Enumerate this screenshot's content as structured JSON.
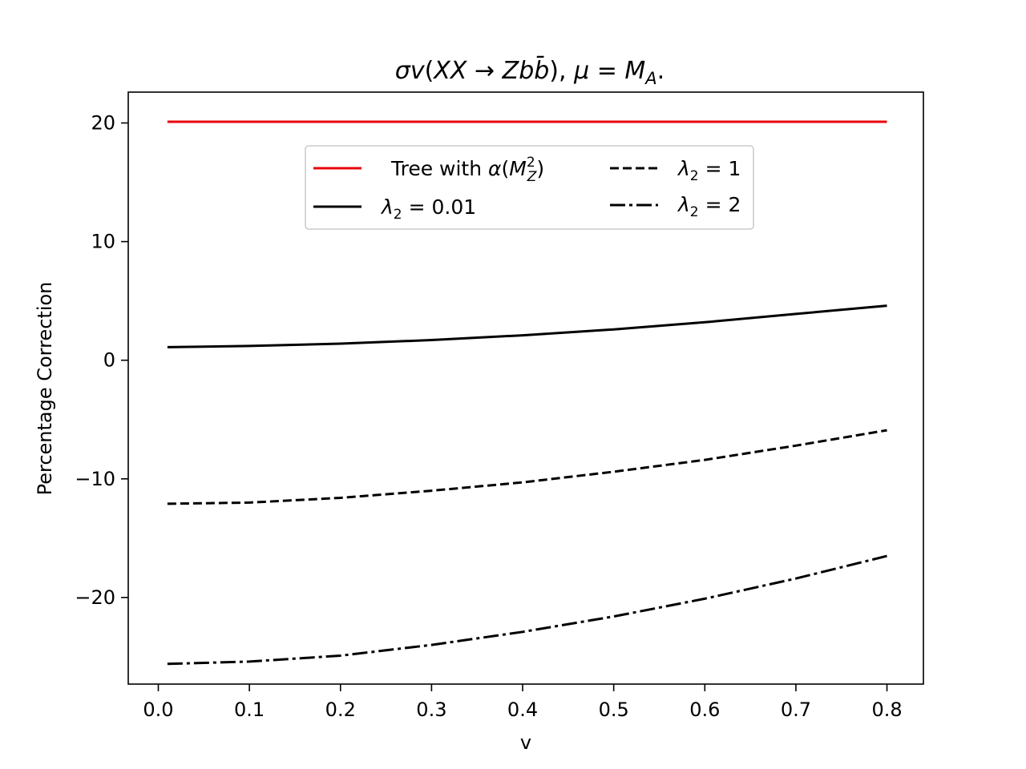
{
  "chart_data": {
    "type": "line",
    "title": {
      "sigma": "σ",
      "v": "v",
      "open": "(",
      "X1": "X",
      "X2": "X",
      "arrow": " → ",
      "Z": "Z",
      "b": "b",
      "bbar": "b̄",
      "close": "),",
      "mu": " μ",
      "eq": " = ",
      "M": "M",
      "A": "A",
      "end": "."
    },
    "xlabel": "v",
    "ylabel": "Percentage Correction",
    "xlim": [
      -0.033,
      0.84
    ],
    "ylim": [
      -27.3,
      22.6
    ],
    "xticks": [
      0.0,
      0.1,
      0.2,
      0.3,
      0.4,
      0.5,
      0.6,
      0.7,
      0.8
    ],
    "xtick_labels": [
      "0.0",
      "0.1",
      "0.2",
      "0.3",
      "0.4",
      "0.5",
      "0.6",
      "0.7",
      "0.8"
    ],
    "yticks": [
      -20,
      -10,
      0,
      10,
      20
    ],
    "ytick_labels": [
      "−20",
      "−10",
      "0",
      "10",
      "20"
    ],
    "x": [
      0.01,
      0.1,
      0.2,
      0.3,
      0.4,
      0.5,
      0.6,
      0.7,
      0.8
    ],
    "series": [
      {
        "key": "tree",
        "color": "#e8000b",
        "dash": "solid",
        "values": [
          20.1,
          20.1,
          20.1,
          20.1,
          20.1,
          20.1,
          20.1,
          20.1,
          20.1
        ]
      },
      {
        "key": "l001",
        "color": "#000000",
        "dash": "solid",
        "values": [
          1.1,
          1.2,
          1.4,
          1.7,
          2.1,
          2.6,
          3.2,
          3.9,
          4.6
        ]
      },
      {
        "key": "l1",
        "color": "#000000",
        "dash": "dashed",
        "values": [
          -12.1,
          -12.0,
          -11.6,
          -11.0,
          -10.3,
          -9.4,
          -8.4,
          -7.2,
          -5.9
        ]
      },
      {
        "key": "l2",
        "color": "#000000",
        "dash": "dashdot",
        "values": [
          -25.6,
          -25.4,
          -24.9,
          -24.0,
          -22.9,
          -21.6,
          -20.1,
          -18.4,
          -16.5
        ]
      }
    ],
    "legend": {
      "placement": "upper-center",
      "tree": {
        "pre": "Tree with ",
        "alpha": "α",
        "open": "(",
        "M": "M",
        "sup": "2",
        "sub": "Z",
        "close": ")"
      },
      "l001": {
        "lam": "λ",
        "sub": "2",
        "eq": " = 0.01"
      },
      "l1": {
        "lam": "λ",
        "sub": "2",
        "eq": " = 1"
      },
      "l2": {
        "lam": "λ",
        "sub": "2",
        "eq": " = 2"
      }
    },
    "grid": false
  }
}
